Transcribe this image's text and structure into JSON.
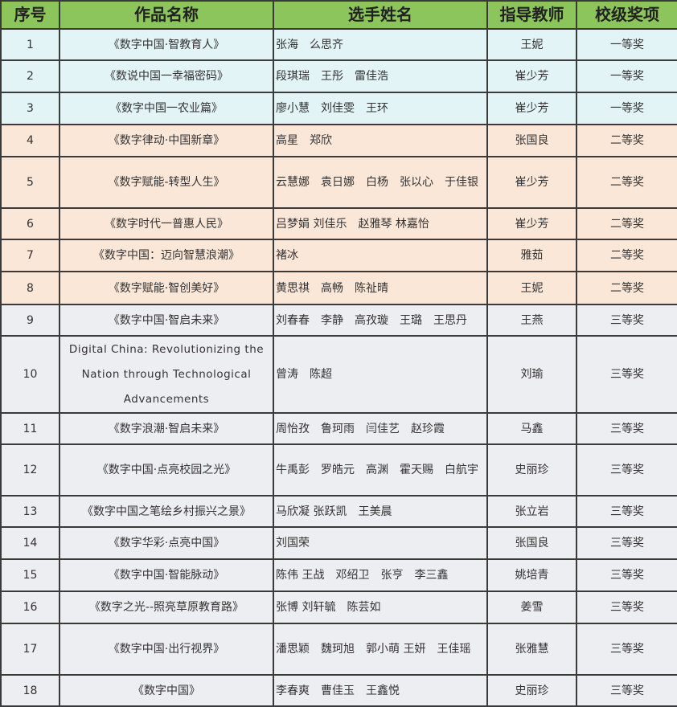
{
  "headers": {
    "no": "序号",
    "work": "作品名称",
    "students": "选手姓名",
    "teacher": "指导教师",
    "award": "校级奖项"
  },
  "colors": {
    "header": "#8cc55b",
    "first_prize_row": "#e3f4f6",
    "second_prize_row": "#fbe7d8",
    "third_prize_row": "#edeef1"
  },
  "rows": [
    {
      "no": "1",
      "work": "《数字中国·智教育人》",
      "students": "张海　么思齐",
      "teacher": "王妮",
      "award": "一等奖"
    },
    {
      "no": "2",
      "work": "《数说中国一幸福密码》",
      "students": "段琪瑞　王彤　雷佳浩",
      "teacher": "崔少芳",
      "award": "一等奖"
    },
    {
      "no": "3",
      "work": "《数字中国一农业篇》",
      "students": "廖小慧　刘佳雯　王环",
      "teacher": "崔少芳",
      "award": "一等奖"
    },
    {
      "no": "4",
      "work": "《数字律动·中国新章》",
      "students": "高星　郑欣",
      "teacher": "张国良",
      "award": "二等奖"
    },
    {
      "no": "5",
      "work": "《数字赋能-转型人生》",
      "students": "云慧娜　袁日娜　白杨　张以心　于佳银",
      "teacher": "崔少芳",
      "award": "二等奖"
    },
    {
      "no": "6",
      "work": "《数字时代一普惠人民》",
      "students": "吕梦娟 刘佳乐　赵雅琴 林嘉怡",
      "teacher": "崔少芳",
      "award": "二等奖"
    },
    {
      "no": "7",
      "work": "《数字中国：迈向智慧浪潮》",
      "students": "褚冰",
      "teacher": "雅茹",
      "award": "二等奖"
    },
    {
      "no": "8",
      "work": "《数字赋能·智创美好》",
      "students": "黄思祺　高畅　陈祉晴",
      "teacher": "王妮",
      "award": "二等奖"
    },
    {
      "no": "9",
      "work": "《数字中国·智启未来》",
      "students": "刘春春　李静　高孜璇　王璐　王思丹",
      "teacher": "王燕",
      "award": "三等奖"
    },
    {
      "no": "10",
      "work": "Digital China: Revolutionizing the Nation through Technological Advancements",
      "students": "曾涛　陈超",
      "teacher": "刘瑜",
      "award": "三等奖"
    },
    {
      "no": "11",
      "work": "《数字浪潮·智启未来》",
      "students": "周怡孜　鲁珂雨　闫佳艺　赵珍霞",
      "teacher": "马鑫",
      "award": "三等奖"
    },
    {
      "no": "12",
      "work": "《数字中国·点亮校园之光》",
      "students": "牛禹彭　罗皓元　高渊　霍天赐　白航宇",
      "teacher": "史丽珍",
      "award": "三等奖"
    },
    {
      "no": "13",
      "work": "《数字中国之笔绘乡村振兴之景》",
      "students": "马欣凝 张跃凯　王美晨",
      "teacher": "张立岩",
      "award": "三等奖"
    },
    {
      "no": "14",
      "work": "《数字华彩·点亮中国》",
      "students": "刘国荣",
      "teacher": "张国良",
      "award": "三等奖"
    },
    {
      "no": "15",
      "work": "《数字中国·智能脉动》",
      "students": "陈伟 王战　邓绍卫　张亨　李三鑫",
      "teacher": "姚培青",
      "award": "三等奖"
    },
    {
      "no": "16",
      "work": "《数字之光--照亮草原教育路》",
      "students": "张博 刘轩毓　陈芸如",
      "teacher": "姜雪",
      "award": "三等奖"
    },
    {
      "no": "17",
      "work": "《数字中国·出行视界》",
      "students": "潘思颖　魏珂旭　郭小萌 王妍　王佳瑶",
      "teacher": "张雅慧",
      "award": "三等奖"
    },
    {
      "no": "18",
      "work": "《数字中国》",
      "students": "李春爽　曹佳玉　王鑫悦",
      "teacher": "史丽珍",
      "award": "三等奖"
    }
  ]
}
